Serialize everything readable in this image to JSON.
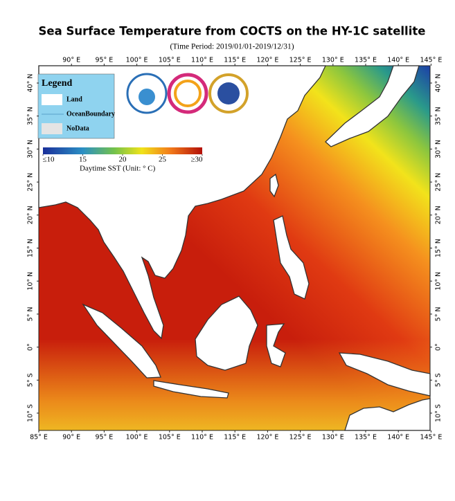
{
  "title": "Sea Surface Temperature from COCTS on the HY-1C satellite",
  "subtitle": "(Time Period: 2019/01/01-2019/12/31)",
  "lon_ticks": [
    {
      "value": 85,
      "label": "85° E"
    },
    {
      "value": 90,
      "label": "90° E"
    },
    {
      "value": 95,
      "label": "95° E"
    },
    {
      "value": 100,
      "label": "100° E"
    },
    {
      "value": 105,
      "label": "105° E"
    },
    {
      "value": 110,
      "label": "110° E"
    },
    {
      "value": 115,
      "label": "115° E"
    },
    {
      "value": 120,
      "label": "120° E"
    },
    {
      "value": 125,
      "label": "125° E"
    },
    {
      "value": 130,
      "label": "130° E"
    },
    {
      "value": 135,
      "label": "135° E"
    },
    {
      "value": 140,
      "label": "140° E"
    },
    {
      "value": 145,
      "label": "145° E"
    }
  ],
  "lat_ticks": [
    {
      "value": 40,
      "label": "40° N"
    },
    {
      "value": 35,
      "label": "35° N"
    },
    {
      "value": 30,
      "label": "30° N"
    },
    {
      "value": 25,
      "label": "25° N"
    },
    {
      "value": 20,
      "label": "20° N"
    },
    {
      "value": 15,
      "label": "15° N"
    },
    {
      "value": 10,
      "label": "10° N"
    },
    {
      "value": 5,
      "label": "5° N"
    },
    {
      "value": 0,
      "label": "0°"
    },
    {
      "value": -5,
      "label": "5° S"
    },
    {
      "value": -10,
      "label": "10° S"
    }
  ],
  "legend": {
    "title": "Legend",
    "items": [
      "Land",
      "OceanBoundary",
      "NoData"
    ]
  },
  "colorbar": {
    "lim": [
      10,
      30
    ],
    "ticks": [
      {
        "value": 10,
        "label": "≤10"
      },
      15,
      20,
      25,
      {
        "value": 30,
        "label": "≥30"
      }
    ],
    "label": "Daytime SST (Unit: ° C)"
  }
}
